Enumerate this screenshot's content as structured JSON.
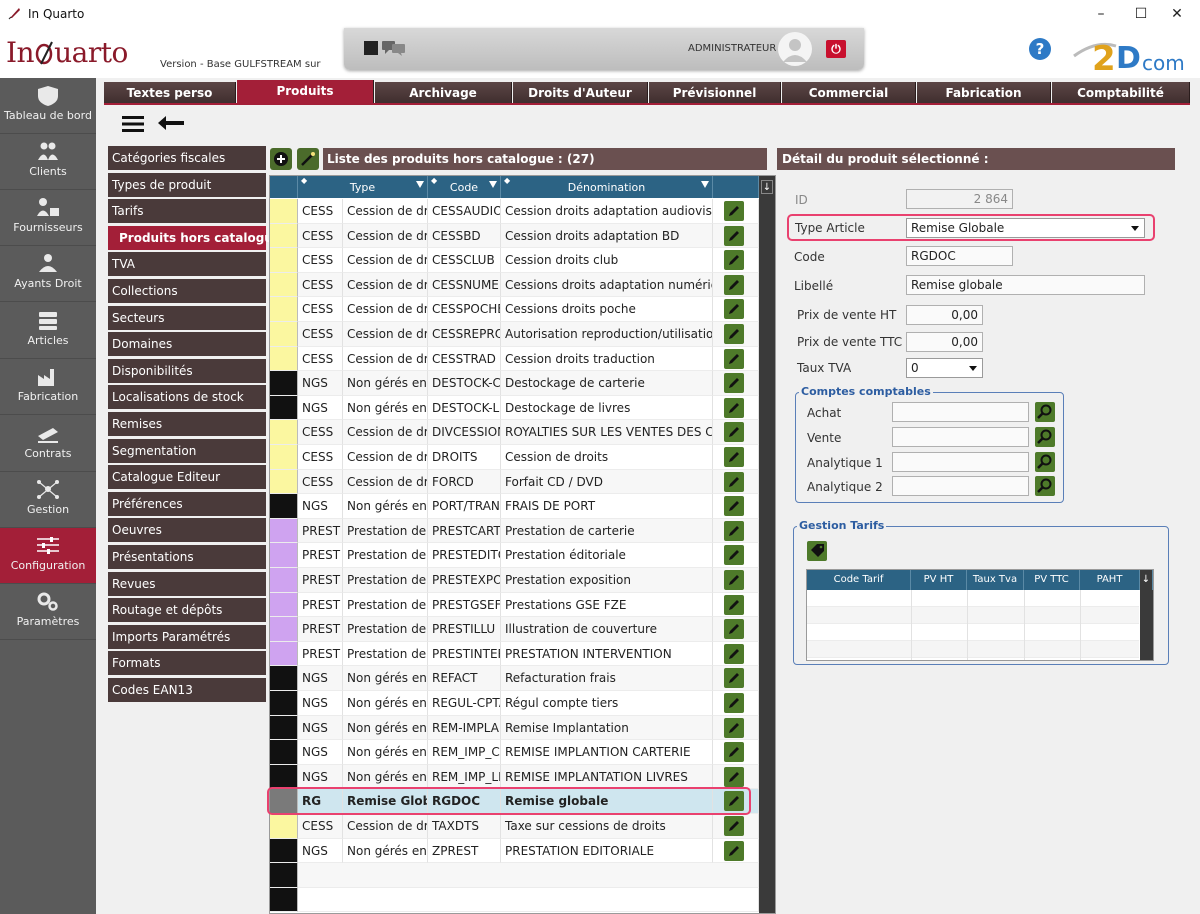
{
  "window": {
    "title": "In Quarto"
  },
  "header": {
    "logo_pre": "In",
    "logo_post": "uarto",
    "version_text": "Version  - Base GULFSTREAM sur",
    "user_label": "ADMINISTRATEUR",
    "help_label": "?",
    "brand_text": "com"
  },
  "leftnav": [
    {
      "label": "Tableau de bord",
      "icon": "shield-icon"
    },
    {
      "label": "Clients",
      "icon": "clients-icon"
    },
    {
      "label": "Fournisseurs",
      "icon": "suppliers-icon"
    },
    {
      "label": "Ayants Droit",
      "icon": "rights-holders-icon"
    },
    {
      "label": "Articles",
      "icon": "books-icon"
    },
    {
      "label": "Fabrication",
      "icon": "factory-icon"
    },
    {
      "label": "Contrats",
      "icon": "contracts-icon"
    },
    {
      "label": "Gestion",
      "icon": "network-icon"
    },
    {
      "label": "Configuration",
      "icon": "sliders-icon",
      "active": true
    },
    {
      "label": "Paramètres",
      "icon": "gears-icon"
    }
  ],
  "tabs": [
    {
      "label": "Textes perso"
    },
    {
      "label": "Produits",
      "active": true
    },
    {
      "label": "Archivage"
    },
    {
      "label": "Droits d'Auteur"
    },
    {
      "label": "Prévisionnel"
    },
    {
      "label": "Commercial"
    },
    {
      "label": "Fabrication"
    },
    {
      "label": "Comptabilité"
    }
  ],
  "submenu": [
    {
      "label": "Catégories fiscales"
    },
    {
      "label": "Types de produit"
    },
    {
      "label": "Tarifs"
    },
    {
      "label": "Produits hors catalogue",
      "active": true
    },
    {
      "label": "TVA"
    },
    {
      "label": "Collections"
    },
    {
      "label": "Secteurs"
    },
    {
      "label": "Domaines"
    },
    {
      "label": "Disponibilités"
    },
    {
      "label": "Localisations de stock"
    },
    {
      "label": "Remises"
    },
    {
      "label": "Segmentation"
    },
    {
      "label": "Catalogue Editeur"
    },
    {
      "label": "Préférences"
    },
    {
      "label": "Oeuvres"
    },
    {
      "label": "Présentations"
    },
    {
      "label": "Revues"
    },
    {
      "label": "Routage et dépôts"
    },
    {
      "label": "Imports Paramétrés"
    },
    {
      "label": "Formats"
    },
    {
      "label": "Codes EAN13"
    }
  ],
  "list": {
    "title": "Liste des produits hors catalogue : (27)",
    "columns": [
      "Type",
      "Code",
      "Dénomination"
    ],
    "rows": [
      {
        "color": "#fbf7a0",
        "type": "CESS",
        "typelabel": "Cession de dro",
        "code": "CESSAUDIOV",
        "name": "Cession droits adaptation audiovisuell"
      },
      {
        "color": "#fbf7a0",
        "type": "CESS",
        "typelabel": "Cession de dro",
        "code": "CESSBD",
        "name": "Cession droits adaptation BD"
      },
      {
        "color": "#fbf7a0",
        "type": "CESS",
        "typelabel": "Cession de dro",
        "code": "CESSCLUB",
        "name": "Cession droits club"
      },
      {
        "color": "#fbf7a0",
        "type": "CESS",
        "typelabel": "Cession de dro",
        "code": "CESSNUMER",
        "name": "Cessions droits adaptation numérique"
      },
      {
        "color": "#fbf7a0",
        "type": "CESS",
        "typelabel": "Cession de dro",
        "code": "CESSPOCHE",
        "name": "Cessions droits poche"
      },
      {
        "color": "#fbf7a0",
        "type": "CESS",
        "typelabel": "Cession de dro",
        "code": "CESSREPRO",
        "name": "Autorisation reproduction/utilisation"
      },
      {
        "color": "#fbf7a0",
        "type": "CESS",
        "typelabel": "Cession de dro",
        "code": "CESSTRAD",
        "name": "Cession droits traduction"
      },
      {
        "color": "#111111",
        "type": "NGS",
        "typelabel": "Non gérés en s",
        "code": "DESTOCK-CA",
        "name": "Destockage de carterie"
      },
      {
        "color": "#111111",
        "type": "NGS",
        "typelabel": "Non gérés en s",
        "code": "DESTOCK-LIV",
        "name": "Destockage de livres"
      },
      {
        "color": "#fbf7a0",
        "type": "CESS",
        "typelabel": "Cession de dro",
        "code": "DIVCESSION",
        "name": "ROYALTIES SUR LES VENTES DES CESSI"
      },
      {
        "color": "#fbf7a0",
        "type": "CESS",
        "typelabel": "Cession de dro",
        "code": "DROITS",
        "name": "Cession de droits"
      },
      {
        "color": "#fbf7a0",
        "type": "CESS",
        "typelabel": "Cession de dro",
        "code": "FORCD",
        "name": "Forfait CD / DVD"
      },
      {
        "color": "#111111",
        "type": "NGS",
        "typelabel": "Non gérés en s",
        "code": "PORT/TRANS",
        "name": "FRAIS DE PORT"
      },
      {
        "color": "#cfa3f0",
        "type": "PREST",
        "typelabel": "Prestation de s",
        "code": "PRESTCART",
        "name": "Prestation de carterie"
      },
      {
        "color": "#cfa3f0",
        "type": "PREST",
        "typelabel": "Prestation de s",
        "code": "PRESTEDITO",
        "name": "Prestation éditoriale"
      },
      {
        "color": "#cfa3f0",
        "type": "PREST",
        "typelabel": "Prestation de s",
        "code": "PRESTEXPO",
        "name": "Prestation exposition"
      },
      {
        "color": "#cfa3f0",
        "type": "PREST",
        "typelabel": "Prestation de s",
        "code": "PRESTGSEFZ",
        "name": "Prestations GSE FZE"
      },
      {
        "color": "#cfa3f0",
        "type": "PREST",
        "typelabel": "Prestation de s",
        "code": "PRESTILLU",
        "name": "Illustration de couverture"
      },
      {
        "color": "#cfa3f0",
        "type": "PREST",
        "typelabel": "Prestation de s",
        "code": "PRESTINTERV",
        "name": "PRESTATION INTERVENTION"
      },
      {
        "color": "#111111",
        "type": "NGS",
        "typelabel": "Non gérés en s",
        "code": "REFACT",
        "name": "Refacturation frais"
      },
      {
        "color": "#111111",
        "type": "NGS",
        "typelabel": "Non gérés en s",
        "code": "REGUL-CPTA",
        "name": "Régul compte tiers"
      },
      {
        "color": "#111111",
        "type": "NGS",
        "typelabel": "Non gérés en s",
        "code": "REM-IMPLAN",
        "name": "Remise Implantation"
      },
      {
        "color": "#111111",
        "type": "NGS",
        "typelabel": "Non gérés en s",
        "code": "REM_IMP_CA",
        "name": "REMISE IMPLANTION CARTERIE"
      },
      {
        "color": "#111111",
        "type": "NGS",
        "typelabel": "Non gérés en s",
        "code": "REM_IMP_LIV",
        "name": "REMISE IMPLANTATION LIVRES"
      },
      {
        "color": "#7a7a7a",
        "type": "RG",
        "typelabel": "Remise Globale",
        "code": "RGDOC",
        "name": "Remise globale",
        "selected": true
      },
      {
        "color": "#fbf7a0",
        "type": "CESS",
        "typelabel": "Cession de dro",
        "code": "TAXDTS",
        "name": "Taxe sur cessions de droits"
      },
      {
        "color": "#111111",
        "type": "NGS",
        "typelabel": "Non gérés en s",
        "code": "ZPREST",
        "name": "PRESTATION EDITORIALE"
      }
    ]
  },
  "detail": {
    "title": "Détail du produit sélectionné :",
    "id_label": "ID",
    "id_value": "2 864",
    "type_article_label": "Type Article",
    "type_article_value": "Remise Globale",
    "code_label": "Code",
    "code_value": "RGDOC",
    "libelle_label": "Libellé",
    "libelle_value": "Remise globale",
    "pv_ht_label": "Prix de vente HT",
    "pv_ht_value": "0,00",
    "pv_ttc_label": "Prix de vente TTC",
    "pv_ttc_value": "0,00",
    "tva_label": "Taux TVA",
    "tva_value": "0",
    "comptes_title": "Comptes comptables",
    "achat_label": "Achat",
    "vente_label": "Vente",
    "analytique1_label": "Analytique 1",
    "analytique2_label": "Analytique 2",
    "tarifs_title": "Gestion Tarifs",
    "tarif_columns": [
      "Code Tarif",
      "PV HT",
      "Taux Tva",
      "PV TTC",
      "PAHT"
    ]
  },
  "colors": {
    "accent": "#a31f38",
    "header_brown": "#6a5050",
    "grid_head": "#2c6384",
    "highlight": "#e9416f"
  }
}
